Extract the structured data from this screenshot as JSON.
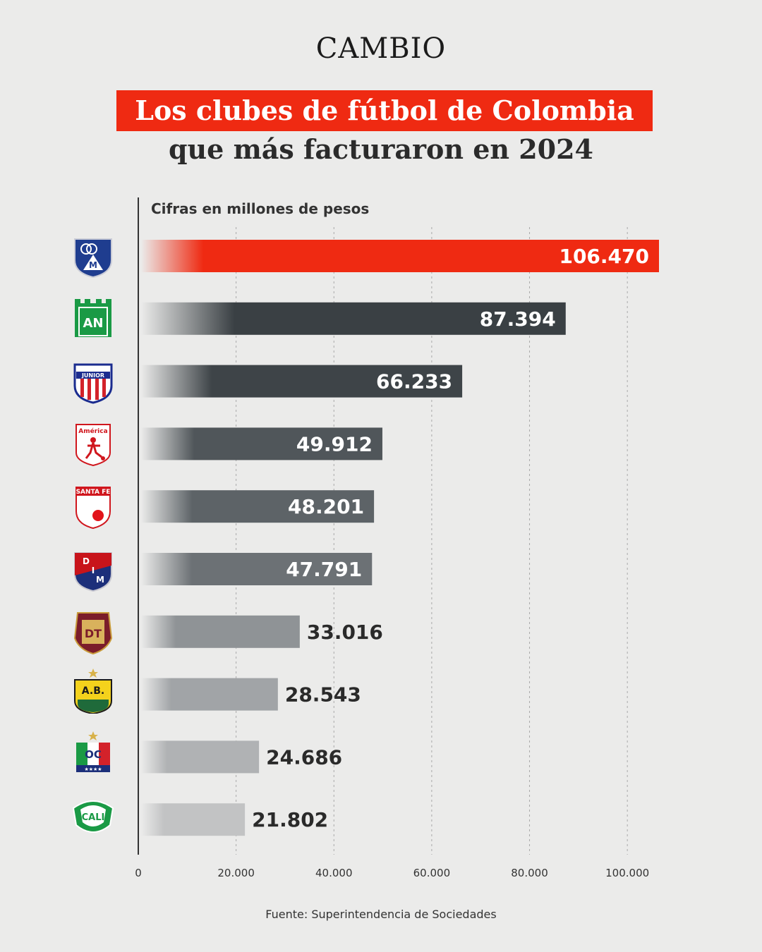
{
  "header": {
    "brand": "CAMBIO",
    "title_line1": "Los clubes de fútbol de Colombia",
    "title_line2": "que más facturaron en 2024",
    "subtitle": "Cifras en millones de pesos"
  },
  "footer": {
    "source": "Fuente: Superintendencia de Sociedades"
  },
  "colors": {
    "accent": "#ef2a12",
    "dark_bar": "#3a4044",
    "background": "#ebebea"
  },
  "logos": [
    {
      "icon": "millonarios-crest-icon",
      "text": "M"
    },
    {
      "icon": "atletico-nacional-crest-icon",
      "text": "AN"
    },
    {
      "icon": "junior-crest-icon",
      "text": "JUNIOR"
    },
    {
      "icon": "america-de-cali-crest-icon",
      "text": "América"
    },
    {
      "icon": "santa-fe-crest-icon",
      "text": "SANTA FE"
    },
    {
      "icon": "independiente-medellin-crest-icon",
      "text": "DIM"
    },
    {
      "icon": "deportes-tolima-crest-icon",
      "text": "DT"
    },
    {
      "icon": "atletico-bucaramanga-crest-icon",
      "text": "A.B."
    },
    {
      "icon": "once-caldas-crest-icon",
      "text": "OC"
    },
    {
      "icon": "deportivo-cali-crest-icon",
      "text": "CALI"
    }
  ],
  "chart_data": {
    "type": "bar",
    "orientation": "horizontal",
    "title": "Los clubes de fútbol de Colombia que más facturaron en 2024",
    "subtitle": "Cifras en millones de pesos",
    "xlim": [
      0,
      106470
    ],
    "x_ticks": [
      0,
      20000,
      40000,
      60000,
      80000,
      100000
    ],
    "x_tick_labels": [
      "0",
      "20.000",
      "40.000",
      "60.000",
      "80.000",
      "100.000"
    ],
    "grid": "vertical dashed",
    "values": [
      106470,
      87394,
      66233,
      49912,
      48201,
      47791,
      33016,
      28543,
      24686,
      21802
    ],
    "value_labels": [
      "106.470",
      "87.394",
      "66.233",
      "49.912",
      "48.201",
      "47.791",
      "33.016",
      "28.543",
      "24.686",
      "21.802"
    ]
  }
}
